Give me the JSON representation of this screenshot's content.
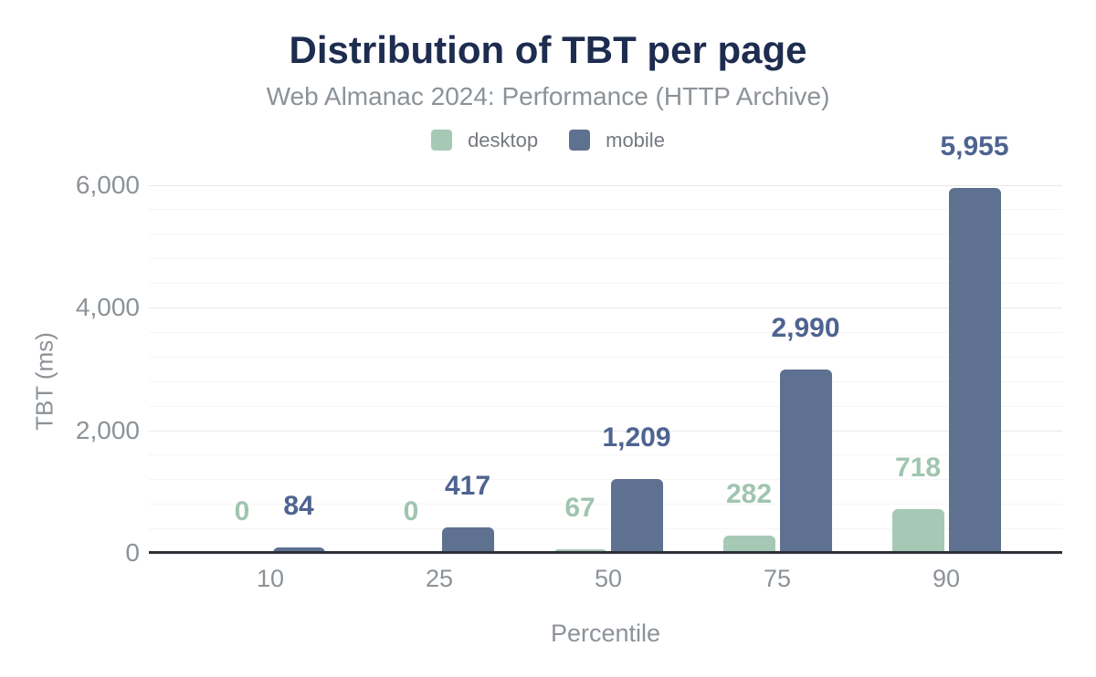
{
  "header": {
    "title": "Distribution of TBT per page",
    "subtitle": "Web Almanac 2024: Performance (HTTP Archive)"
  },
  "legend": {
    "items": [
      {
        "label": "desktop",
        "color": "#a6c9b6"
      },
      {
        "label": "mobile",
        "color": "#5f7190"
      }
    ]
  },
  "chart_data": {
    "type": "bar",
    "title": "Distribution of TBT per page",
    "subtitle": "Web Almanac 2024: Performance (HTTP Archive)",
    "categories": [
      "10",
      "25",
      "50",
      "75",
      "90"
    ],
    "series": [
      {
        "name": "desktop",
        "color": "#a6c9b6",
        "label_color": "#9fc5b0",
        "values": [
          0,
          0,
          67,
          282,
          718
        ],
        "labels": [
          "0",
          "0",
          "67",
          "282",
          "718"
        ]
      },
      {
        "name": "mobile",
        "color": "#5f7190",
        "label_color": "#4e6390",
        "values": [
          84,
          417,
          1209,
          2990,
          5955
        ],
        "labels": [
          "84",
          "417",
          "1,209",
          "2,990",
          "5,955"
        ]
      }
    ],
    "xlabel": "Percentile",
    "ylabel": "TBT (ms)",
    "ylim": [
      0,
      6000
    ],
    "yticks": [
      0,
      2000,
      4000,
      6000
    ],
    "ytick_labels": [
      "0",
      "2,000",
      "4,000",
      "6,000"
    ],
    "minor_gridline_step": 400,
    "grid": "on",
    "legend_position": "top",
    "colors": {
      "title": "#1d2c4f",
      "subtitle": "#8c9298",
      "axis_text": "#8c9298",
      "axis_line": "#2d3238",
      "gridline_major": "#e8e8e8",
      "gridline_minor": "#f5f5f5",
      "background": "#ffffff"
    }
  }
}
